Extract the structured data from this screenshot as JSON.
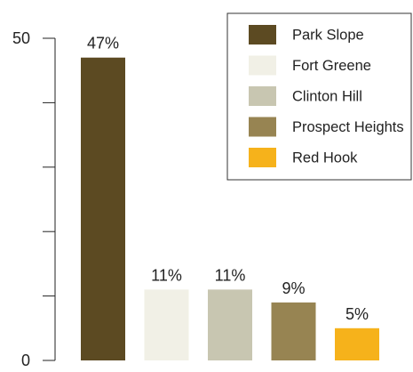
{
  "chart_data": {
    "type": "bar",
    "title": "",
    "xlabel": "",
    "ylabel": "",
    "ylim": [
      0,
      50
    ],
    "y_ticks": [
      0,
      10,
      20,
      30,
      40,
      50
    ],
    "y_tick_labels": [
      "0",
      "",
      "",
      "",
      "",
      "50"
    ],
    "grid": false,
    "legend_placement": "top-right",
    "categories": [
      "Park Slope",
      "Fort Greene",
      "Clinton Hill",
      "Prospect Heights",
      "Red Hook"
    ],
    "values": [
      47,
      11,
      11,
      9,
      5
    ],
    "value_labels": [
      "47%",
      "11%",
      "11%",
      "9%",
      "5%"
    ],
    "colors": [
      "#5c4a22",
      "#f1f0e6",
      "#c8c6b1",
      "#978452",
      "#f6b21b"
    ]
  }
}
